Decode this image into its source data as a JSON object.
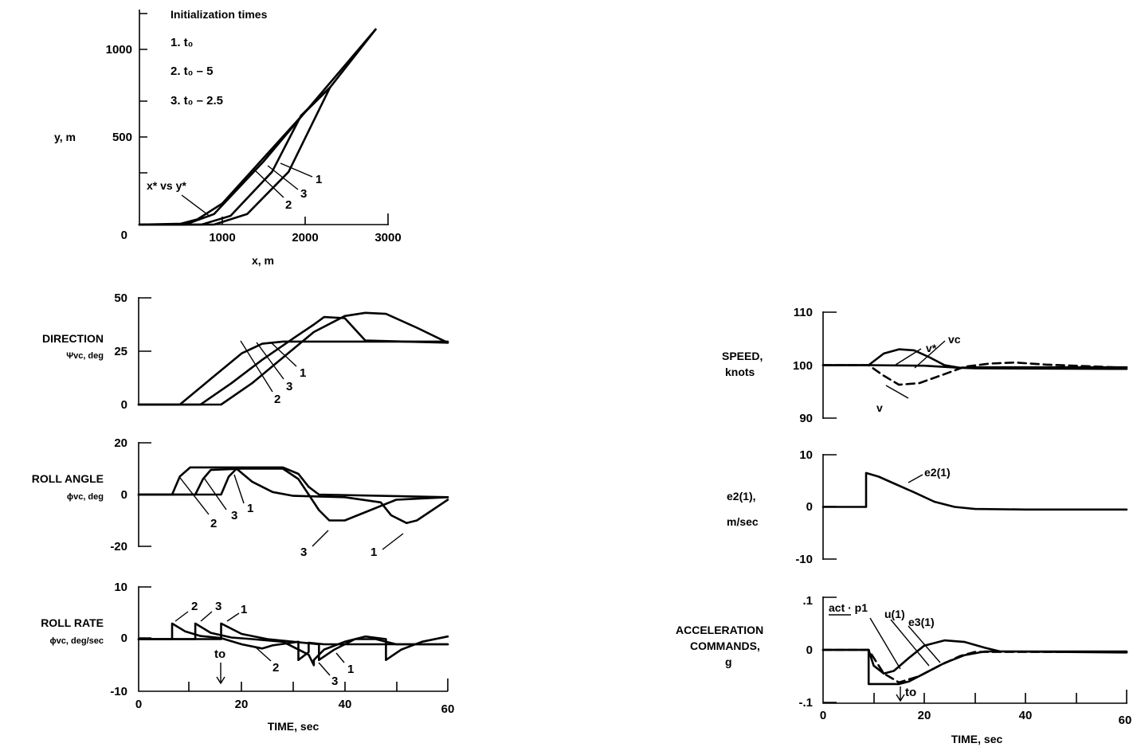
{
  "chart_data": [
    {
      "id": "traj",
      "type": "line",
      "xlabel": "x, m",
      "ylabel": "y, m",
      "xlim": [
        0,
        3000
      ],
      "ylim": [
        0,
        1200
      ],
      "xticks": [
        {
          "v": 1000,
          "label": "1000"
        },
        {
          "v": 2000,
          "label": "2000"
        },
        {
          "v": 3000,
          "label": "3000"
        }
      ],
      "yticks": [
        {
          "v": 0,
          "label": "0"
        },
        {
          "v": 500,
          "label": "500"
        },
        {
          "v": 1000,
          "label": "1000"
        }
      ],
      "legend": {
        "title": "Initialization times",
        "items": [
          "1.  t₀",
          "2.  t₀ – 5",
          "3.  t₀ – 2.5"
        ]
      },
      "annotation": "x* vs y*",
      "series": [
        {
          "name": "x* vs y*",
          "x": [
            0,
            500,
            700,
            1000,
            2000,
            2850
          ],
          "y": [
            0,
            5,
            30,
            120,
            640,
            1110
          ]
        },
        {
          "name": "1",
          "x": [
            0,
            900,
            1300,
            1800,
            2300,
            2850
          ],
          "y": [
            0,
            0,
            60,
            300,
            780,
            1110
          ]
        },
        {
          "name": "2",
          "x": [
            0,
            550,
            900,
            1500,
            2000,
            2300
          ],
          "y": [
            0,
            0,
            60,
            360,
            640,
            780
          ]
        },
        {
          "name": "3",
          "x": [
            0,
            750,
            1100,
            1600,
            1950,
            2300
          ],
          "y": [
            0,
            0,
            50,
            300,
            620,
            780
          ]
        }
      ],
      "curve_labels": [
        "1",
        "2",
        "3"
      ]
    },
    {
      "id": "dir",
      "type": "line",
      "ylabel": "DIRECTION",
      "ysub": "Ψvc, deg",
      "xlim": [
        0,
        60
      ],
      "ylim": [
        0,
        50
      ],
      "yticks": [
        {
          "v": 0,
          "label": "0"
        },
        {
          "v": 25,
          "label": "25"
        },
        {
          "v": 50,
          "label": "50"
        }
      ],
      "series": [
        {
          "name": "1",
          "t": [
            0,
            16,
            22,
            28,
            34,
            40,
            44,
            48,
            54,
            60
          ],
          "y": [
            0,
            0,
            10,
            22,
            34,
            41.5,
            43,
            42.5,
            36,
            29
          ]
        },
        {
          "name": "2",
          "t": [
            0,
            8,
            14,
            20,
            24,
            28,
            60
          ],
          "y": [
            0,
            0,
            12,
            24,
            28.5,
            29.5,
            29.5
          ]
        },
        {
          "name": "3",
          "t": [
            0,
            12,
            18,
            24,
            30,
            34,
            36,
            40,
            44,
            60
          ],
          "y": [
            0,
            0,
            10,
            21,
            31,
            37.5,
            41,
            40.5,
            30,
            29
          ]
        }
      ],
      "curve_labels": [
        "1",
        "2",
        "3"
      ]
    },
    {
      "id": "roll",
      "type": "line",
      "ylabel": "ROLL ANGLE",
      "ysub": "ϕvc, deg",
      "xlim": [
        0,
        60
      ],
      "ylim": [
        -20,
        20
      ],
      "yticks": [
        {
          "v": -20,
          "label": "-20"
        },
        {
          "v": 0,
          "label": "0"
        },
        {
          "v": 20,
          "label": "20"
        }
      ],
      "series": [
        {
          "name": "2",
          "t": [
            0,
            6.5,
            8,
            10,
            28,
            31,
            33,
            35,
            60
          ],
          "y": [
            0,
            0,
            7,
            10.5,
            10.5,
            8,
            3,
            0,
            -1
          ]
        },
        {
          "name": "3",
          "t": [
            0,
            11,
            12.5,
            14,
            20,
            28,
            31,
            33,
            35,
            37,
            40,
            45,
            50,
            60
          ],
          "y": [
            0,
            0,
            6,
            9.5,
            10,
            10,
            6,
            0,
            -6,
            -10,
            -10,
            -6,
            -2,
            -1
          ]
        },
        {
          "name": "1",
          "t": [
            0,
            16,
            17.5,
            19,
            22,
            26,
            30,
            40,
            47,
            49,
            52,
            54,
            57,
            60
          ],
          "y": [
            0,
            0,
            7,
            10,
            5,
            1,
            -0.5,
            -1,
            -3,
            -8,
            -11,
            -10,
            -6,
            -2
          ]
        }
      ],
      "curve_labels": [
        "2",
        "3",
        "1",
        "3",
        "1"
      ]
    },
    {
      "id": "rate",
      "type": "line",
      "ylabel": "ROLL RATE",
      "ysub": "ϕvc, deg/sec",
      "xlabel": "TIME, sec",
      "xlim": [
        0,
        60
      ],
      "ylim": [
        -10,
        10
      ],
      "xticks": [
        {
          "v": 0,
          "label": "0"
        },
        {
          "v": 20,
          "label": "20"
        },
        {
          "v": 40,
          "label": "40"
        },
        {
          "v": 60,
          "label": "60"
        }
      ],
      "yticks": [
        {
          "v": -10,
          "label": "-10"
        },
        {
          "v": 0,
          "label": "0"
        },
        {
          "v": 10,
          "label": "10"
        }
      ],
      "marker": {
        "t": 16,
        "label": "to"
      },
      "series": [
        {
          "name": "2",
          "t": [
            0,
            6.5,
            6.5,
            9,
            12,
            16,
            20,
            24,
            26,
            31,
            31,
            33,
            33,
            36,
            40,
            44,
            48,
            60
          ],
          "y": [
            0,
            0,
            3,
            1.5,
            0.6,
            0.2,
            -1,
            -1.8,
            -1.2,
            -0.5,
            -4,
            -2.5,
            -0.7,
            -1,
            -1,
            -1,
            -1,
            -1
          ]
        },
        {
          "name": "3",
          "t": [
            0,
            11,
            11,
            14,
            18,
            22,
            28,
            33,
            34,
            34,
            36,
            40,
            44,
            48,
            48,
            51,
            55,
            60
          ],
          "y": [
            0,
            0,
            3,
            1.2,
            0.3,
            0,
            -0.5,
            -3,
            -5,
            -4,
            -2,
            -0.5,
            0.5,
            0,
            -4,
            -2,
            -0.5,
            0.5
          ]
        },
        {
          "name": "1",
          "t": [
            0,
            16,
            16,
            20,
            25,
            30,
            35,
            35,
            38,
            42,
            46,
            50,
            60
          ],
          "y": [
            0,
            0,
            3,
            1,
            0,
            -0.5,
            -1,
            -4,
            -2,
            0,
            0,
            -1,
            -1
          ]
        }
      ],
      "curve_labels": [
        "2",
        "3",
        "1",
        "2",
        "3",
        "1"
      ]
    },
    {
      "id": "speed",
      "type": "line",
      "ylabel": "SPEED,",
      "ysub": "knots",
      "xlim": [
        0,
        60
      ],
      "ylim": [
        90,
        110
      ],
      "yticks": [
        {
          "v": 90,
          "label": "90"
        },
        {
          "v": 100,
          "label": "100"
        },
        {
          "v": 110,
          "label": "110"
        }
      ],
      "series": [
        {
          "name": "v*",
          "t": [
            0,
            9,
            12,
            15,
            18,
            21,
            24,
            27,
            30,
            60
          ],
          "y": [
            100,
            100,
            102.2,
            103,
            102.8,
            101.5,
            100,
            99.5,
            99.6,
            99.6
          ]
        },
        {
          "name": "vc",
          "t": [
            0,
            9,
            20,
            27,
            30,
            60
          ],
          "y": [
            100,
            100,
            99.9,
            99.5,
            99.4,
            99.3
          ]
        },
        {
          "name": "v",
          "t": [
            0,
            9,
            12,
            15,
            19,
            24,
            28,
            33,
            38,
            44,
            60
          ],
          "y": [
            100,
            100,
            98,
            96.3,
            96.6,
            98.3,
            99.7,
            100.3,
            100.5,
            100.1,
            99.5
          ]
        }
      ],
      "curve_labels": [
        "v*",
        "vc",
        "v"
      ]
    },
    {
      "id": "e2",
      "type": "line",
      "ylabel": "e2(1),",
      "ysub": "m/sec",
      "xlim": [
        0,
        60
      ],
      "ylim": [
        -10,
        10
      ],
      "yticks": [
        {
          "v": -10,
          "label": "-10"
        },
        {
          "v": 0,
          "label": "0"
        },
        {
          "v": 10,
          "label": "10"
        }
      ],
      "series": [
        {
          "name": "e2(1)",
          "t": [
            0,
            8.5,
            8.5,
            11,
            14,
            18,
            22,
            26,
            30,
            40,
            60
          ],
          "y": [
            0,
            0,
            6.5,
            5.8,
            4.5,
            2.8,
            1,
            0,
            -0.4,
            -0.5,
            -0.5
          ]
        }
      ],
      "curve_labels": [
        "e2(1)"
      ]
    },
    {
      "id": "acc",
      "type": "line",
      "ylabel": "ACCELERATION",
      "ylabel2": "COMMANDS,",
      "ysub": "g",
      "xlabel": "TIME, sec",
      "xlim": [
        0,
        60
      ],
      "ylim": [
        -0.1,
        0.1
      ],
      "xticks": [
        {
          "v": 0,
          "label": "0"
        },
        {
          "v": 20,
          "label": "20"
        },
        {
          "v": 40,
          "label": "40"
        },
        {
          "v": 60,
          "label": "60"
        }
      ],
      "yticks": [
        {
          "v": -0.1,
          "label": "-.1"
        },
        {
          "v": 0,
          "label": "0"
        },
        {
          "v": 0.1,
          "label": ".1"
        }
      ],
      "marker": {
        "t": 15.5,
        "label": "to"
      },
      "legend_label": "act · p1",
      "series": [
        {
          "name": "act·p1",
          "t": [
            0,
            9,
            9,
            15,
            17,
            20,
            24,
            28,
            32,
            60
          ],
          "y": [
            0,
            0,
            -0.065,
            -0.065,
            -0.06,
            -0.045,
            -0.025,
            -0.01,
            -0.003,
            -0.003
          ]
        },
        {
          "name": "u(1)",
          "t": [
            0,
            9,
            10,
            12,
            14,
            17,
            20,
            24,
            28,
            32,
            35,
            60
          ],
          "y": [
            0,
            0,
            -0.03,
            -0.045,
            -0.04,
            -0.015,
            0.008,
            0.018,
            0.015,
            0.004,
            -0.003,
            -0.005
          ]
        },
        {
          "name": "e3(1)",
          "t": [
            0,
            9,
            12,
            15,
            19,
            23,
            27,
            30,
            60
          ],
          "y": [
            0,
            0,
            -0.045,
            -0.062,
            -0.05,
            -0.03,
            -0.012,
            -0.004,
            -0.004
          ]
        }
      ],
      "curve_labels": [
        "u(1)",
        "e3(1)"
      ]
    }
  ]
}
